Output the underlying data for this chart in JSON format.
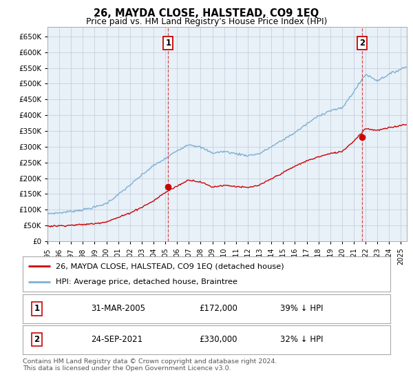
{
  "title": "26, MAYDA CLOSE, HALSTEAD, CO9 1EQ",
  "subtitle": "Price paid vs. HM Land Registry's House Price Index (HPI)",
  "ytick_values": [
    0,
    50000,
    100000,
    150000,
    200000,
    250000,
    300000,
    350000,
    400000,
    450000,
    500000,
    550000,
    600000,
    650000
  ],
  "ylim": [
    0,
    680000
  ],
  "xlim_start": 1995.0,
  "xlim_end": 2025.5,
  "purchase1_date": 2005.25,
  "purchase1_price": 172000,
  "purchase2_date": 2021.73,
  "purchase2_price": 330000,
  "red_color": "#cc0000",
  "blue_color": "#7ab0d4",
  "plot_bg_color": "#e8f0f8",
  "legend_property_label": "26, MAYDA CLOSE, HALSTEAD, CO9 1EQ (detached house)",
  "legend_hpi_label": "HPI: Average price, detached house, Braintree",
  "footer": "Contains HM Land Registry data © Crown copyright and database right 2024.\nThis data is licensed under the Open Government Licence v3.0.",
  "grid_color": "#c0c8d8",
  "background_color": "#ffffff",
  "hpi_anchors_t": [
    1995,
    1996,
    1997,
    1998,
    1999,
    2000,
    2001,
    2002,
    2003,
    2004,
    2005,
    2006,
    2007,
    2008,
    2009,
    2010,
    2011,
    2012,
    2013,
    2014,
    2015,
    2016,
    2017,
    2018,
    2019,
    2020,
    2021,
    2022,
    2023,
    2024,
    2025.5
  ],
  "hpi_anchors_v": [
    88000,
    90000,
    95000,
    100000,
    108000,
    120000,
    148000,
    178000,
    210000,
    240000,
    262000,
    288000,
    308000,
    298000,
    280000,
    285000,
    278000,
    272000,
    278000,
    300000,
    322000,
    345000,
    372000,
    398000,
    415000,
    422000,
    475000,
    530000,
    510000,
    530000,
    555000
  ],
  "prop_anchors_t": [
    1995,
    1996,
    1997,
    1998,
    1999,
    2000,
    2001,
    2002,
    2003,
    2004,
    2005,
    2006,
    2007,
    2008,
    2009,
    2010,
    2011,
    2012,
    2013,
    2014,
    2015,
    2016,
    2017,
    2018,
    2019,
    2020,
    2021,
    2022,
    2023,
    2024,
    2025.5
  ],
  "prop_anchors_v": [
    48000,
    49000,
    51000,
    53000,
    56000,
    62000,
    75000,
    90000,
    108000,
    128000,
    155000,
    175000,
    195000,
    188000,
    172000,
    178000,
    174000,
    170000,
    178000,
    198000,
    218000,
    238000,
    255000,
    268000,
    278000,
    285000,
    318000,
    358000,
    352000,
    360000,
    372000
  ]
}
